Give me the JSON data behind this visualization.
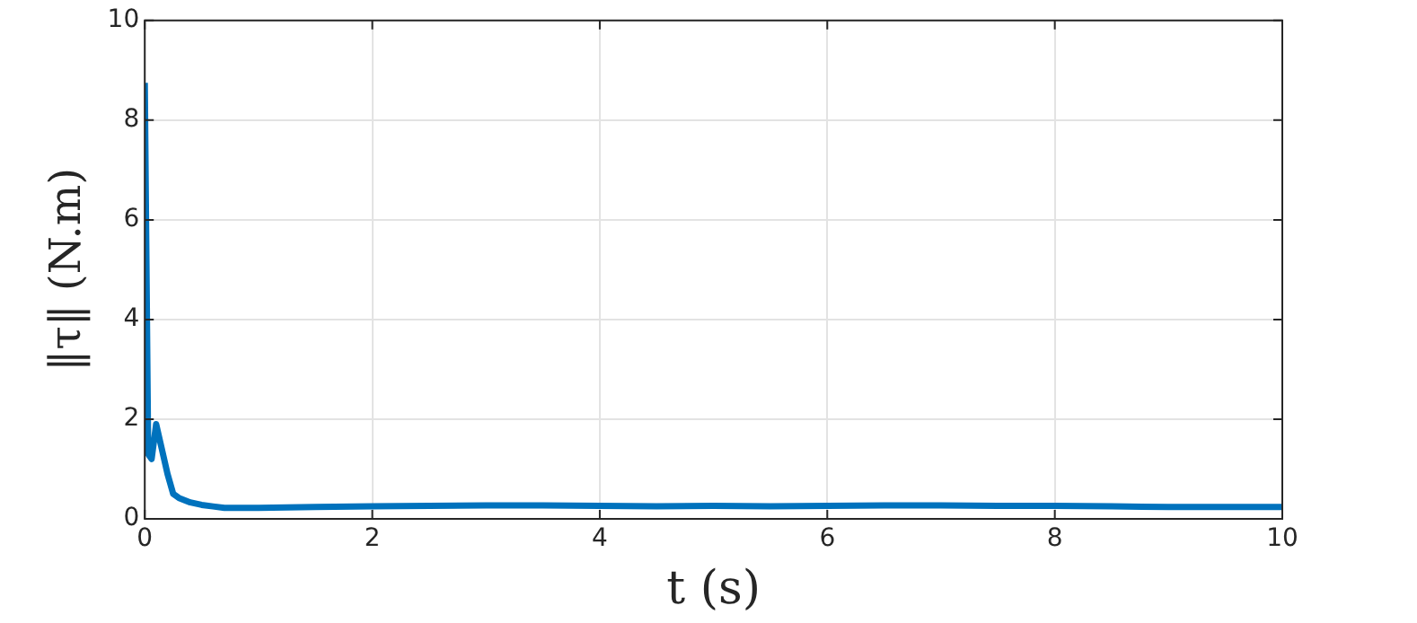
{
  "chart_data": {
    "type": "line",
    "xlabel": "t (s)",
    "ylabel": "‖τ‖ (N.m)",
    "x": [
      0,
      0.03,
      0.06,
      0.1,
      0.15,
      0.2,
      0.25,
      0.3,
      0.4,
      0.5,
      0.6,
      0.7,
      0.8,
      1,
      1.5,
      2,
      2.5,
      3,
      3.5,
      4,
      4.5,
      5,
      5.5,
      6,
      6.5,
      7,
      7.5,
      8,
      8.5,
      9,
      9.5,
      10
    ],
    "series": [
      {
        "color": "#0072bd",
        "values": [
          8.75,
          1.3,
          1.2,
          1.9,
          1.4,
          0.9,
          0.5,
          0.42,
          0.33,
          0.28,
          0.25,
          0.22,
          0.22,
          0.22,
          0.24,
          0.25,
          0.26,
          0.27,
          0.27,
          0.26,
          0.25,
          0.26,
          0.25,
          0.26,
          0.27,
          0.27,
          0.26,
          0.26,
          0.25,
          0.24,
          0.24,
          0.24
        ]
      }
    ],
    "xlim": [
      0,
      10
    ],
    "xticks": [
      0,
      2,
      4,
      6,
      8,
      10
    ],
    "ylim": [
      0,
      10
    ],
    "yticks": [
      0,
      2,
      4,
      6,
      8,
      10
    ],
    "grid": true,
    "legend": false
  }
}
